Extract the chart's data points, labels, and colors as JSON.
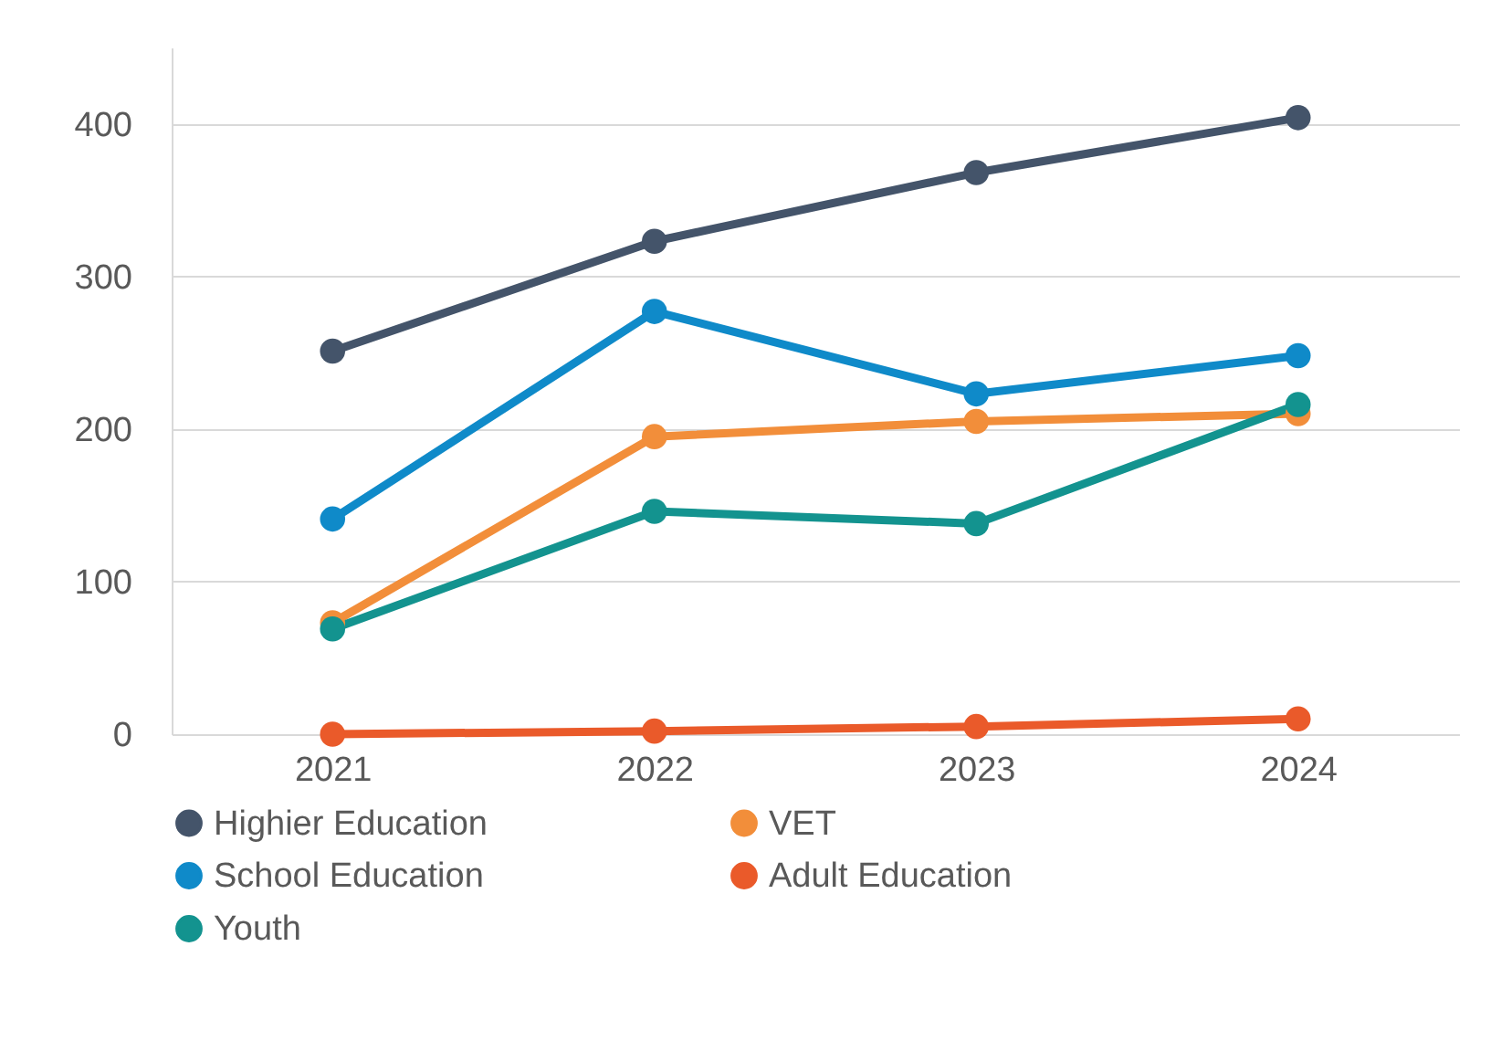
{
  "chart_data": {
    "type": "line",
    "categories": [
      "2021",
      "2022",
      "2023",
      "2024"
    ],
    "series": [
      {
        "name": "Highier Education",
        "color": "#44546a",
        "values": [
          251,
          323,
          368,
          404
        ]
      },
      {
        "name": "VET",
        "color": "#f28e3a",
        "values": [
          73,
          195,
          205,
          210
        ]
      },
      {
        "name": "School Education",
        "color": "#0f8ac9",
        "values": [
          141,
          277,
          223,
          248
        ]
      },
      {
        "name": "Adult Education",
        "color": "#ea5a2a",
        "values": [
          0,
          2,
          5,
          10
        ]
      },
      {
        "name": "Youth",
        "color": "#13938f",
        "values": [
          69,
          146,
          138,
          216
        ]
      }
    ],
    "ylim": [
      0,
      450
    ],
    "yticks": [
      0,
      100,
      200,
      300,
      400
    ],
    "grid": "y",
    "legend": "bottom",
    "marker": "circle",
    "line_style": "solid"
  }
}
